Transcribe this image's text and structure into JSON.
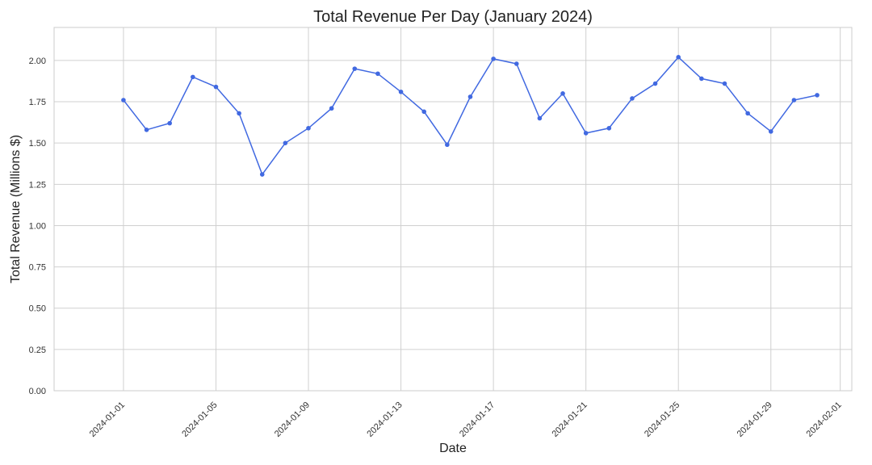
{
  "chart_data": {
    "type": "line",
    "title": "Total Revenue Per Day (January 2024)",
    "xlabel": "Date",
    "ylabel": "Total Revenue (Millions $)",
    "ylim": [
      0,
      2.2
    ],
    "xlim": [
      "2023-12-29",
      "2024-02-01"
    ],
    "grid": true,
    "legend": "none",
    "line_color": "#4169e1",
    "x_tick_labels": [
      "2024-01-01",
      "2024-01-05",
      "2024-01-09",
      "2024-01-13",
      "2024-01-17",
      "2024-01-21",
      "2024-01-25",
      "2024-01-29",
      "2024-02-01"
    ],
    "y_tick_labels": [
      "0.00",
      "0.25",
      "0.50",
      "0.75",
      "1.00",
      "1.25",
      "1.50",
      "1.75",
      "2.00"
    ],
    "series": [
      {
        "x": [
          "2024-01-01",
          "2024-01-02",
          "2024-01-03",
          "2024-01-04",
          "2024-01-05",
          "2024-01-06",
          "2024-01-07",
          "2024-01-08",
          "2024-01-09",
          "2024-01-10",
          "2024-01-11",
          "2024-01-12",
          "2024-01-13",
          "2024-01-14",
          "2024-01-15",
          "2024-01-16",
          "2024-01-17",
          "2024-01-18",
          "2024-01-19",
          "2024-01-20",
          "2024-01-21",
          "2024-01-22",
          "2024-01-23",
          "2024-01-24",
          "2024-01-25",
          "2024-01-26",
          "2024-01-27",
          "2024-01-28",
          "2024-01-29",
          "2024-01-30",
          "2024-01-31"
        ],
        "values": [
          1.76,
          1.58,
          1.62,
          1.9,
          1.84,
          1.68,
          1.31,
          1.5,
          1.59,
          1.71,
          1.95,
          1.92,
          1.81,
          1.69,
          1.49,
          1.78,
          2.01,
          1.98,
          1.65,
          1.8,
          1.56,
          1.59,
          1.77,
          1.86,
          2.02,
          1.89,
          1.86,
          1.68,
          1.57,
          1.76,
          1.79
        ]
      }
    ]
  }
}
